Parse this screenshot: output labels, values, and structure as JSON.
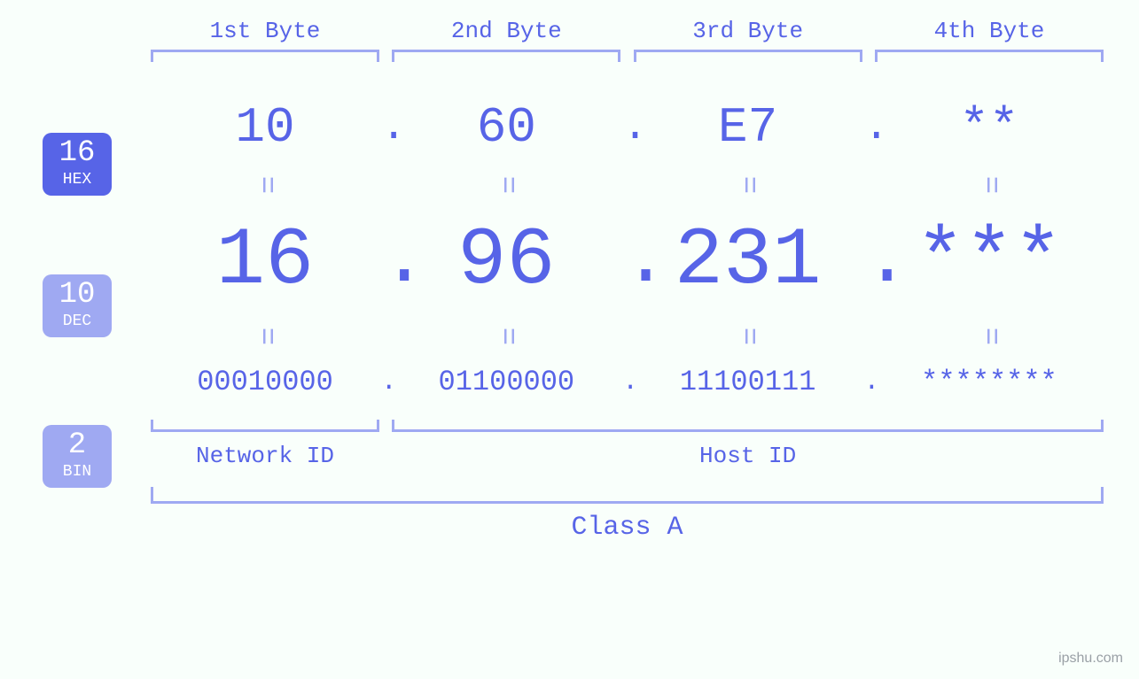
{
  "colors": {
    "primary": "#5764e7",
    "light": "#9fa9f2",
    "background": "#f9fffb"
  },
  "byte_labels": [
    "1st Byte",
    "2nd Byte",
    "3rd Byte",
    "4th Byte"
  ],
  "badges": {
    "hex": {
      "num": "16",
      "txt": "HEX"
    },
    "dec": {
      "num": "10",
      "txt": "DEC"
    },
    "bin": {
      "num": "2",
      "txt": "BIN"
    }
  },
  "values": {
    "hex": [
      "10",
      "60",
      "E7",
      "**"
    ],
    "dec": [
      "16",
      "96",
      "231",
      "***"
    ],
    "bin": [
      "00010000",
      "01100000",
      "11100111",
      "********"
    ]
  },
  "eq_glyph": "=",
  "dot": ".",
  "network_label": "Network ID",
  "host_label": "Host ID",
  "class_label": "Class A",
  "watermark": "ipshu.com"
}
